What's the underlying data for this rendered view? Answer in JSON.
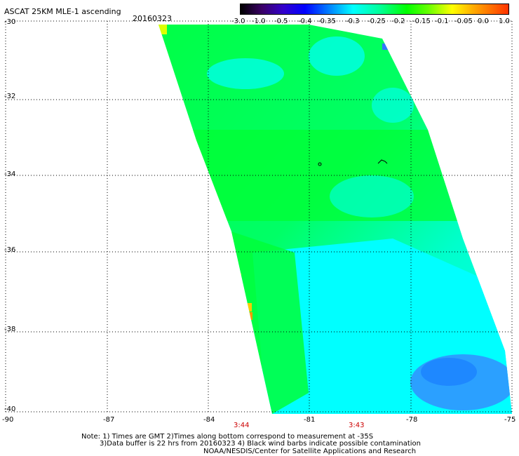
{
  "header": {
    "title": "ASCAT 25KM MLE-1 ascending",
    "date": "20160323"
  },
  "colorbar": {
    "stops": [
      "#000000",
      "#4b0082",
      "#0000ff",
      "#0088ff",
      "#00ffff",
      "#00ff00",
      "#ffff00",
      "#ff8800",
      "#ff0000"
    ],
    "tick_labels": [
      "-3.0",
      "-1.0",
      "-0.5",
      "-0.4",
      "-0.35",
      "-0.3",
      "-0.25",
      "-0.2",
      "-0.15",
      "-0.1",
      "-0.05",
      "0.0",
      "1.0"
    ]
  },
  "map": {
    "lat_labels": [
      "-30",
      "-32",
      "-34",
      "-36",
      "-38",
      "-40"
    ],
    "lon_labels": [
      "-90",
      "-87",
      "-84",
      "-81",
      "-78",
      "-75"
    ],
    "pass_times": [
      "3:44",
      "3:43"
    ],
    "grid": "dotted",
    "colors": {
      "swath_main": "#00ff80",
      "swath_cyan": "#00ffff",
      "swath_low": "#2ba0ff",
      "high_values": "#ffff00"
    }
  },
  "footer": {
    "line1": "Note: 1) Times are GMT 2)Times along bottom correspond to measurement at -35S",
    "line2": "3)Data buffer is 22 hrs from 20160323 4) Black wind barbs indicate possible contamination",
    "line3": "NOAA/NESDIS/Center for Satellite Applications and Research"
  }
}
